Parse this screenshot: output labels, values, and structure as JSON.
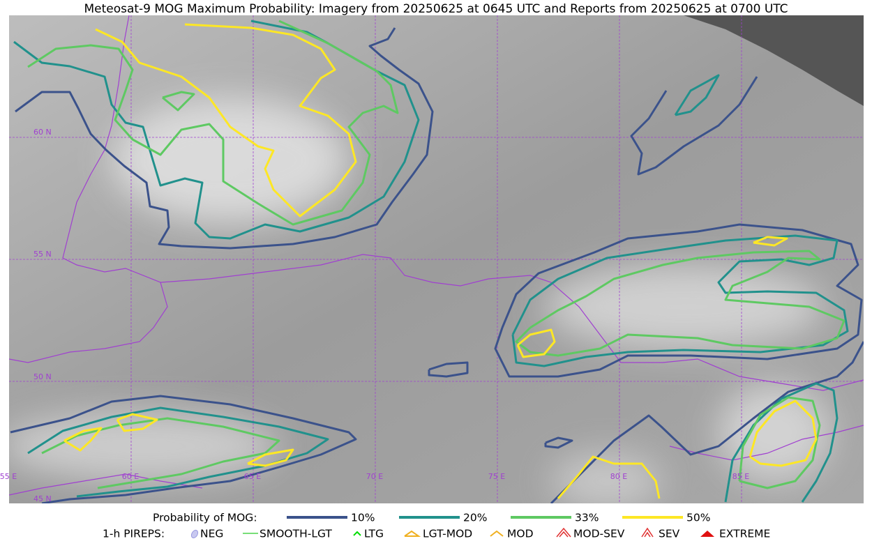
{
  "title": "Meteosat-9 MOG Maximum Probability: Imagery from 20250625 at 0645 UTC and Reports from 20250625 at 0700 UTC",
  "map": {
    "lat_labels": [
      "60 N",
      "55 N",
      "50 N",
      "45 N"
    ],
    "lon_labels": [
      "55 E",
      "60 E",
      "65 E",
      "70 E",
      "75 E",
      "80 E",
      "85 E"
    ]
  },
  "legend": {
    "probability": {
      "label": "Probability of MOG:",
      "items": [
        "10%",
        "20%",
        "33%",
        "50%"
      ]
    },
    "pireps": {
      "label": "1-h PIREPS:",
      "items": [
        "NEG",
        "SMOOTH-LGT",
        "LTG",
        "LGT-MOD",
        "MOD",
        "MOD-SEV",
        "SEV",
        "EXTREME"
      ]
    }
  }
}
